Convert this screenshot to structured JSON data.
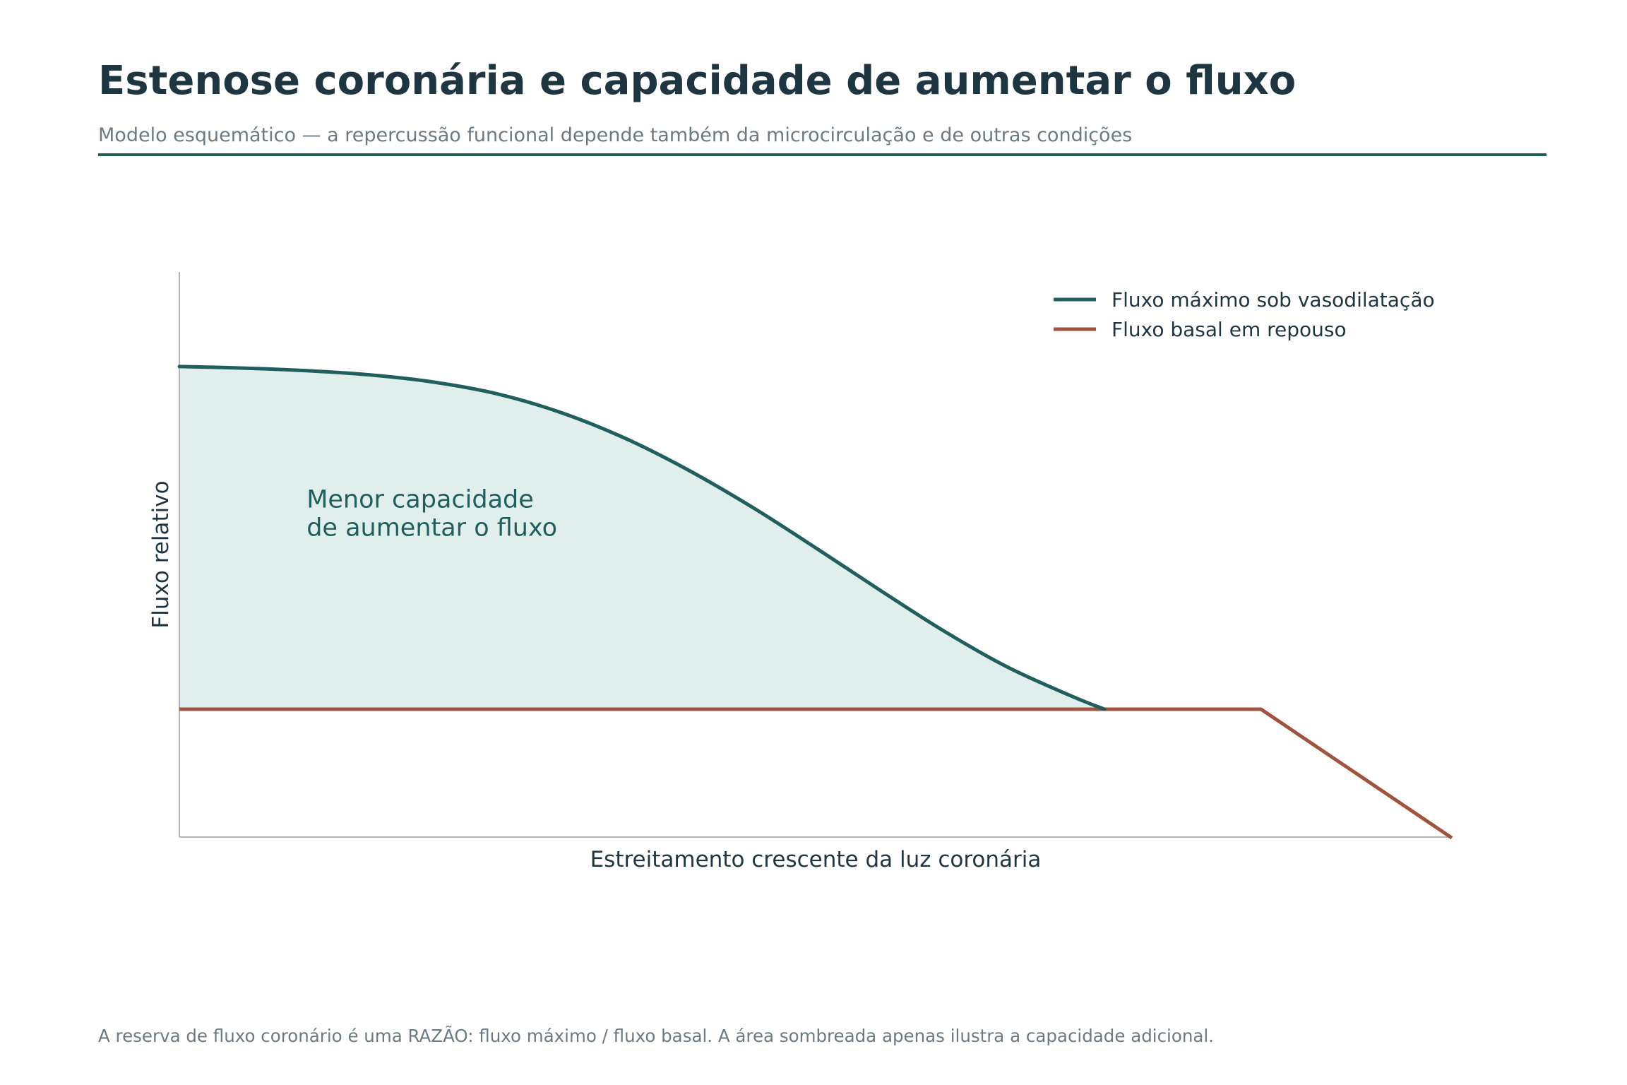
{
  "header": {
    "title": "Estenose coronária e capacidade de aumentar o fluxo",
    "subtitle": "Modelo esquemático — a repercussão funcional depende também da microcirculação e de outras condições"
  },
  "footnote": "A reserva de fluxo coronário é uma RAZÃO: fluxo máximo / fluxo basal. A área sombreada apenas ilustra a capacidade adicional.",
  "chart_data": {
    "type": "line",
    "xlabel": "Estreitamento crescente da luz coronária",
    "ylabel": "Fluxo relativo",
    "xlim": [
      0,
      100
    ],
    "ylim": [
      0,
      100
    ],
    "grid": false,
    "legend_placement": "top-right",
    "axis_ticks": "none",
    "series": [
      {
        "name": "Fluxo máximo sob vasodilatação",
        "color": "#205f5e",
        "x": [
          0,
          5,
          10,
          15,
          20,
          25,
          30,
          35,
          40,
          45,
          50,
          55,
          60,
          65,
          70,
          72.7
        ],
        "y": [
          90,
          89.6,
          88.9,
          87.8,
          85.9,
          82.8,
          77.9,
          71.2,
          62.8,
          53.1,
          42.4,
          31.4,
          20.7,
          11.2,
          3.6,
          0
        ]
      },
      {
        "name": "Fluxo basal em repouso",
        "color": "#a05440",
        "x": [
          0,
          72.7,
          85,
          100
        ],
        "y": [
          0,
          0,
          0,
          -33.8
        ]
      }
    ],
    "shaded_region": {
      "between": [
        "Fluxo máximo sob vasodilatação",
        "Fluxo basal em repouso"
      ],
      "color": "#e0efeb",
      "label_lines": [
        "Menor capacidade",
        "de aumentar o fluxo"
      ],
      "label_color": "#205f5e"
    },
    "label_at": [
      10,
      53
    ]
  }
}
